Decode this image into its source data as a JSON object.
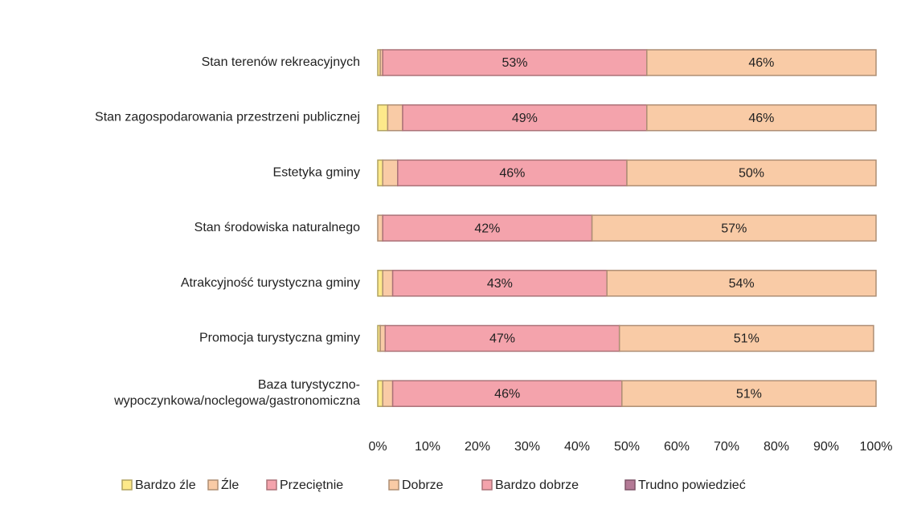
{
  "chart_data": {
    "type": "stacked-bar-horizontal",
    "categories": [
      "Stan terenów rekreacyjnych",
      "Stan zagospodarowania przestrzeni publicznej",
      "Estetyka gminy",
      "Stan środowiska naturalnego",
      "Atrakcyjność turystyczna gminy",
      "Promocja turystyczna gminy",
      "Baza turystyczno-\nwypoczynkowa/noclegowa/gastronomiczna"
    ],
    "series": [
      {
        "name": "Bardzo źle",
        "color": "#fde98a",
        "values": [
          0.5,
          2,
          1,
          0,
          1,
          0.5,
          1
        ]
      },
      {
        "name": "Źle",
        "color": "#f9cba6",
        "values": [
          0.5,
          3,
          3,
          1,
          2,
          1,
          2
        ]
      },
      {
        "name": "Przeciętnie",
        "color": "#f4a3ac",
        "values": [
          53,
          49,
          46,
          42,
          43,
          47,
          46
        ],
        "value_labels": [
          "53%",
          "49%",
          "46%",
          "42%",
          "43%",
          "47%",
          "46%"
        ]
      },
      {
        "name": "Dobrze",
        "color": "#f9cba6",
        "values": [
          46,
          46,
          50,
          57,
          54,
          51,
          51
        ],
        "value_labels": [
          "46%",
          "46%",
          "50%",
          "57%",
          "54%",
          "51%",
          "51%"
        ]
      },
      {
        "name": "Bardzo dobrze",
        "color": "#f4a3ac",
        "values": [
          0,
          0,
          0,
          0,
          0,
          0,
          0
        ]
      },
      {
        "name": "Trudno powiedzieć",
        "color": "#b47a96",
        "values": [
          0,
          0,
          0,
          0,
          0,
          0,
          0
        ]
      }
    ],
    "xlim": [
      0,
      100
    ],
    "xticks": [
      {
        "value": 0,
        "label": "0%"
      },
      {
        "value": 10,
        "label": "10%"
      },
      {
        "value": 20,
        "label": "20%"
      },
      {
        "value": 30,
        "label": "30%"
      },
      {
        "value": 40,
        "label": "40%"
      },
      {
        "value": 50,
        "label": "50%"
      },
      {
        "value": 60,
        "label": "60%"
      },
      {
        "value": 70,
        "label": "70%"
      },
      {
        "value": 80,
        "label": "80%"
      },
      {
        "value": 90,
        "label": "90%"
      },
      {
        "value": 100,
        "label": "100%"
      }
    ],
    "legend": "bottom"
  }
}
